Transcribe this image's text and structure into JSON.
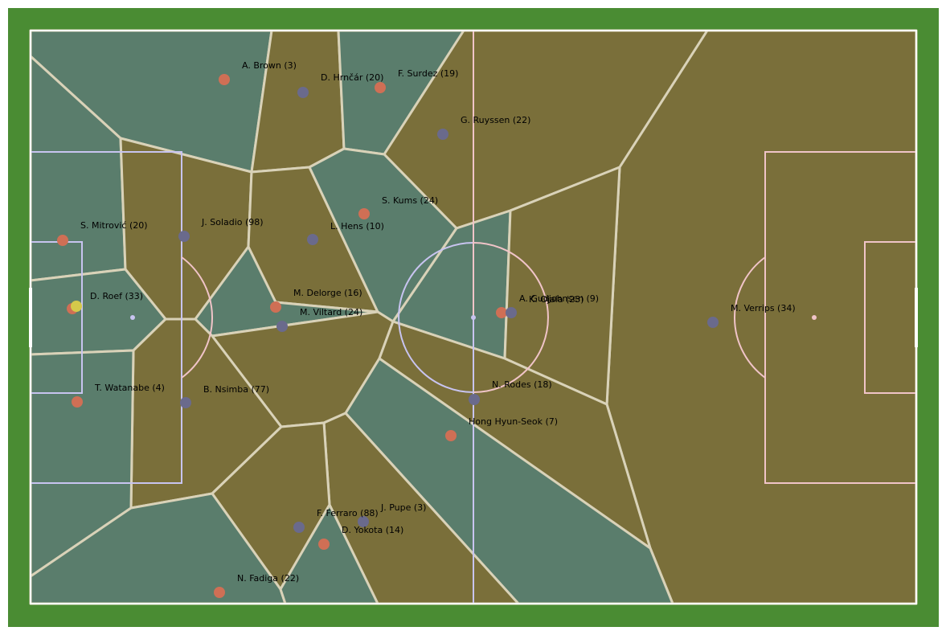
{
  "colors": {
    "grass": "#4a8c33",
    "team_a_region": "#7a6f3a",
    "team_b_region": "#5a7d6c",
    "team_a_dot": "#cf6f55",
    "team_b_dot": "#6a6a8c",
    "ball": "#d4c94a",
    "region_edge": "#d9d2b8",
    "left_half_lines": "#c8c4f0",
    "right_half_lines": "#f0c4c8",
    "outer_line": "#ffffff"
  },
  "players": [
    {
      "label": "A. Brown (3)",
      "team": "a"
    },
    {
      "label": "D. Hrnčár (20)",
      "team": "b"
    },
    {
      "label": "F. Surdez (19)",
      "team": "a"
    },
    {
      "label": "G. Ruyssen (22)",
      "team": "b"
    },
    {
      "label": "S. Kums (24)",
      "team": "a"
    },
    {
      "label": "L. Hens (10)",
      "team": "b"
    },
    {
      "label": "S. Mitrović (20)",
      "team": "a"
    },
    {
      "label": "J. Soladio (98)",
      "team": "b"
    },
    {
      "label": "D. Roef (33)",
      "team": "a"
    },
    {
      "label": "M. Delorge (16)",
      "team": "a"
    },
    {
      "label": "M. Viltard (24)",
      "team": "b"
    },
    {
      "label": "A. Gudjohnsen (9)",
      "team": "a"
    },
    {
      "label": "K. Ojala (23)",
      "team": "b"
    },
    {
      "label": "M. Verrips (34)",
      "team": "b"
    },
    {
      "label": "T. Watanabe (4)",
      "team": "a"
    },
    {
      "label": "B. Nsimba (77)",
      "team": "b"
    },
    {
      "label": "N. Rodes (18)",
      "team": "b"
    },
    {
      "label": "Hong Hyun-Seok (7)",
      "team": "a"
    },
    {
      "label": "J. Pupe (3)",
      "team": "b"
    },
    {
      "label": "F. Ferraro (88)",
      "team": "b"
    },
    {
      "label": "D. Yokota (14)",
      "team": "a"
    },
    {
      "label": "N. Fadiga (22)",
      "team": "a"
    }
  ]
}
